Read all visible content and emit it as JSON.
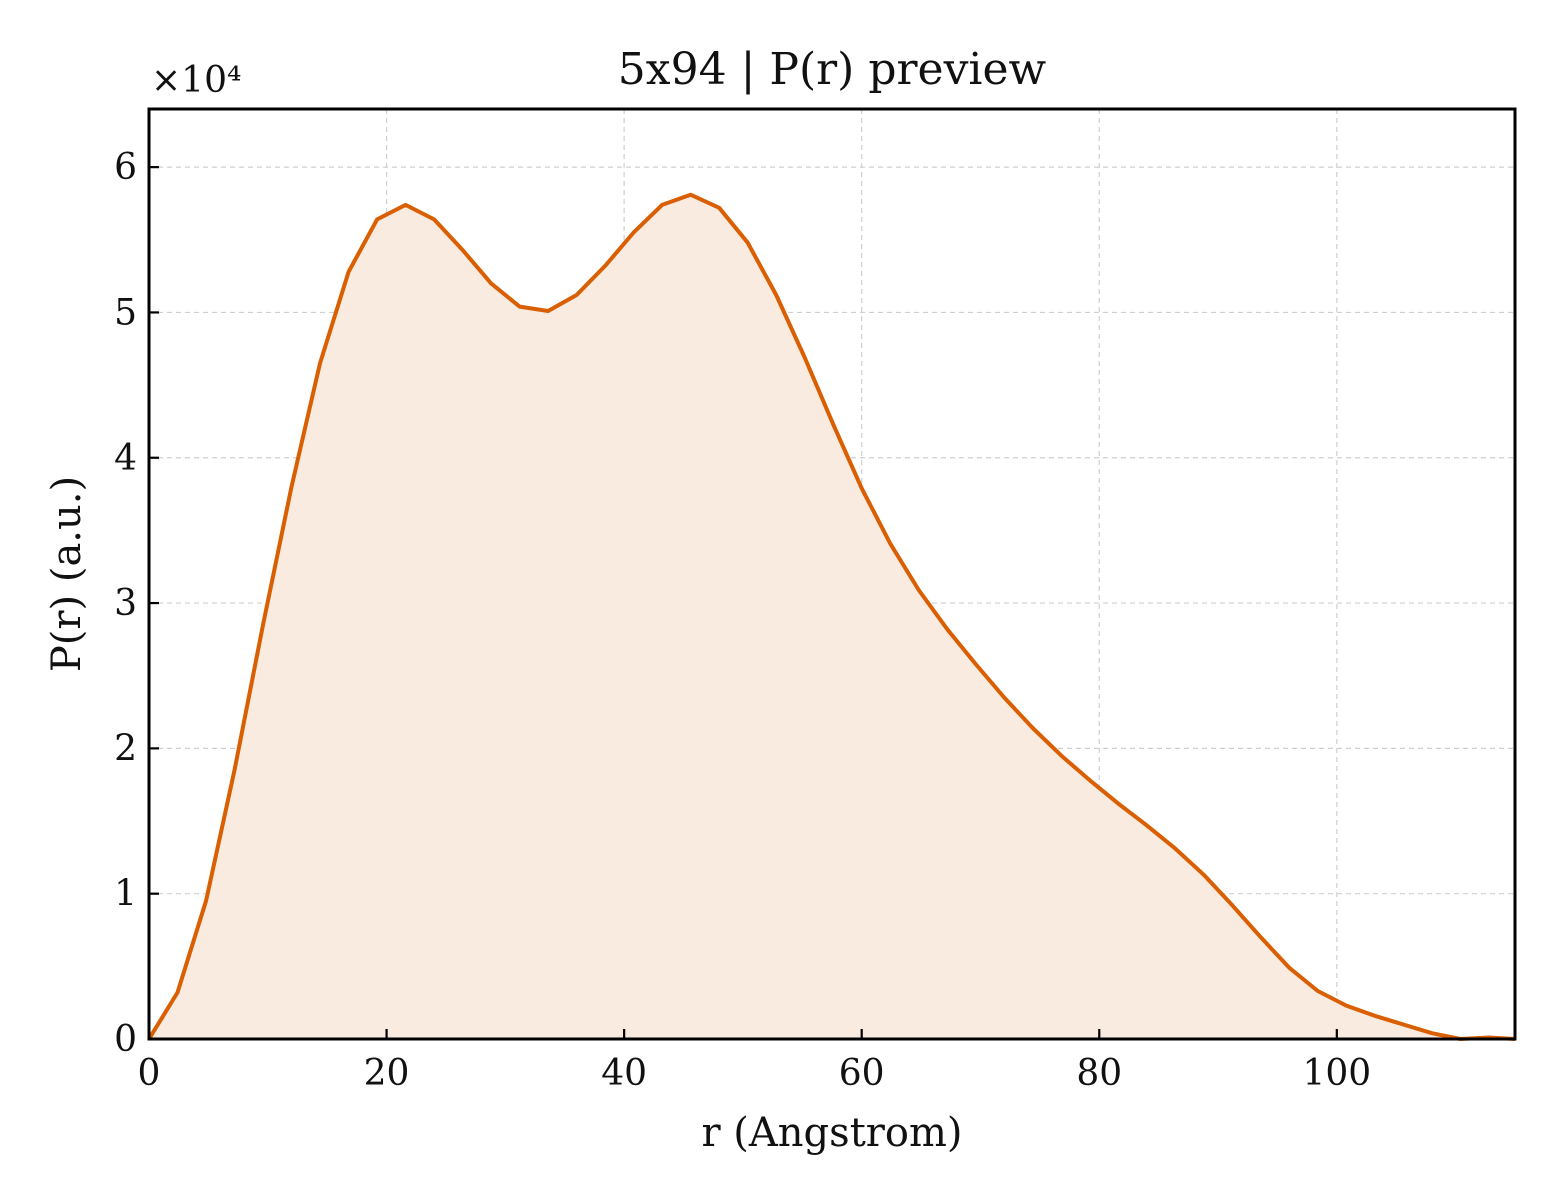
{
  "chart_data": {
    "type": "area",
    "title": "5x94 | P(r) preview",
    "xlabel": "r (Angstrom)",
    "ylabel": "P(r) (a.u.)",
    "y_multiplier_label": "×10⁴",
    "y_scale": 10000,
    "xlim": [
      0,
      115
    ],
    "ylim": [
      0,
      64000
    ],
    "x_ticks": [
      0,
      20,
      40,
      60,
      80,
      100
    ],
    "y_ticks": [
      0,
      10000,
      20000,
      30000,
      40000,
      50000,
      60000
    ],
    "y_tick_labels": [
      "0",
      "1",
      "2",
      "3",
      "4",
      "5",
      "6"
    ],
    "grid": true,
    "line_color": "#d95f02",
    "fill_color": "#f9ebe0",
    "series": [
      {
        "x": [
          0,
          2.4,
          4.8,
          7.2,
          9.6,
          12.0,
          14.4,
          16.8,
          19.2,
          21.6,
          24.0,
          26.4,
          28.8,
          31.2,
          33.6,
          36.0,
          38.4,
          40.8,
          43.2,
          45.6,
          48.0,
          50.4,
          52.8,
          55.2,
          57.6,
          60.0,
          62.4,
          64.8,
          67.2,
          69.6,
          72.0,
          74.4,
          76.8,
          79.2,
          81.6,
          84.0,
          86.4,
          88.8,
          91.2,
          93.6,
          96.0,
          98.4,
          100.8,
          103.2,
          105.6,
          108.0,
          110.4,
          112.8,
          115.0
        ],
        "y": [
          0,
          3200,
          9500,
          18500,
          28500,
          38000,
          46500,
          52800,
          56400,
          57400,
          56400,
          54300,
          52000,
          50400,
          50100,
          51200,
          53200,
          55500,
          57400,
          58100,
          57200,
          54800,
          51200,
          46900,
          42300,
          37900,
          34100,
          30900,
          28200,
          25800,
          23500,
          21400,
          19500,
          17800,
          16200,
          14700,
          13100,
          11300,
          9200,
          7000,
          4900,
          3300,
          2300,
          1600,
          1000,
          400,
          0,
          100,
          0
        ]
      }
    ]
  }
}
